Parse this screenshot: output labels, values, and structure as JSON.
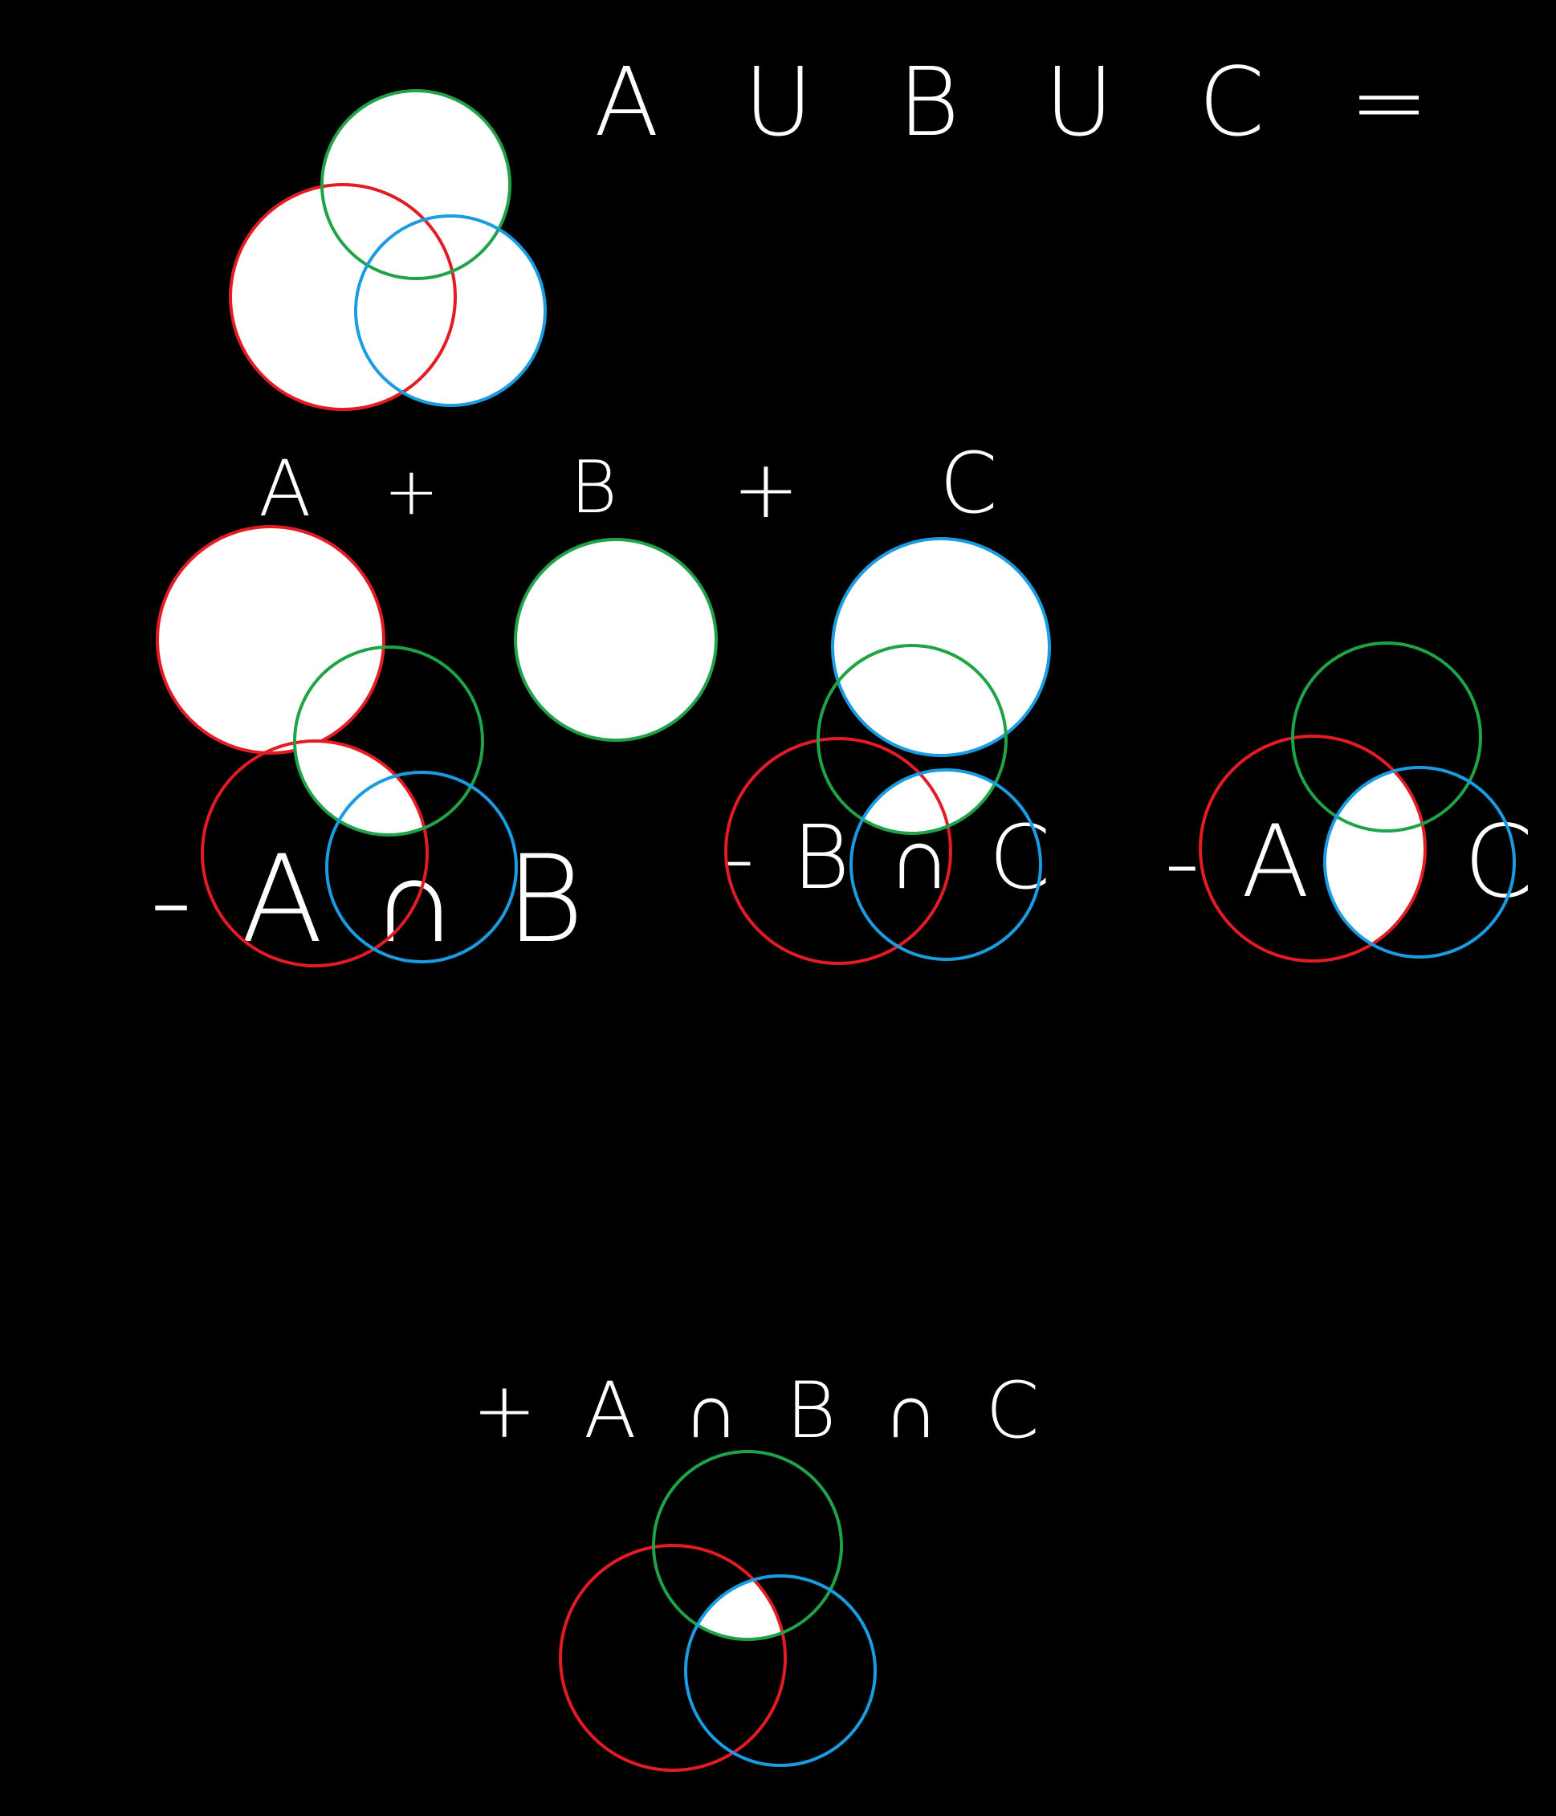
{
  "equations": {
    "union": "A U B U C =",
    "term_a": "A",
    "plus_1": "+",
    "term_b": "B",
    "plus_2": "+",
    "term_c": "C",
    "minus_ab": "- A ∩ B",
    "minus_bc": "- B ∩ C",
    "minus_ac": "- A ∩ C",
    "plus_abc": "+ A ∩ B ∩ C"
  },
  "colors": {
    "set_a": "#e31b23",
    "set_b": "#1fa346",
    "set_c": "#1a9ce3",
    "shade": "#ffffff",
    "background": "#000000"
  }
}
